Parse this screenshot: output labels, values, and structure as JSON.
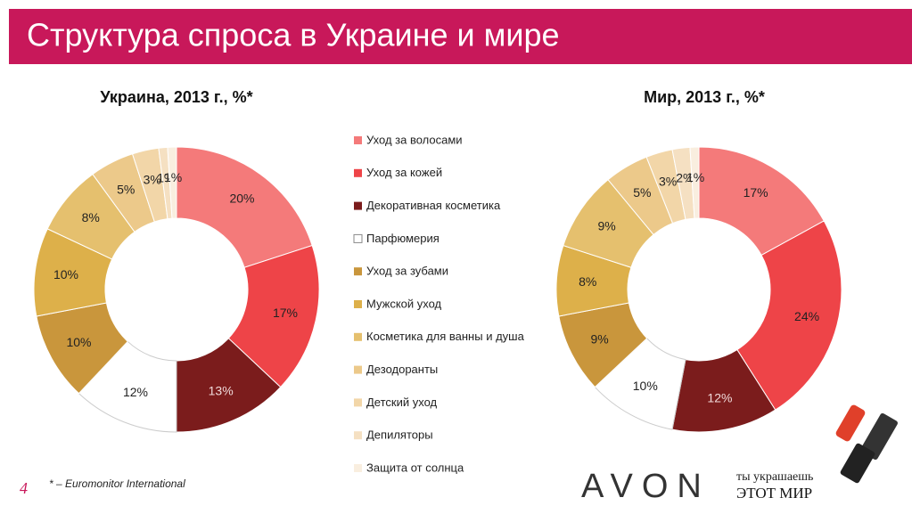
{
  "slide": {
    "title": "Структура спроса в Украине и мире",
    "page_number": "4",
    "footnote": "* – Euromonitor International",
    "brand": "AVON",
    "slogan_top": "ты украшаешь",
    "slogan_bottom": "ЭТОТ МИР"
  },
  "chart_data": [
    {
      "type": "pie",
      "title": "Украина, 2013 г., %*",
      "categories": [
        "Уход за волосами",
        "Уход за кожей",
        "Декоративная косметика",
        "Парфюмерия",
        "Уход за зубами",
        "Мужской уход",
        "Косметика для ванны и душа",
        "Дезодоранты",
        "Детский уход",
        "Депиляторы",
        "Защита от солнца"
      ],
      "values": [
        20,
        17,
        13,
        12,
        10,
        10,
        8,
        5,
        3,
        1,
        1
      ],
      "value_labels": [
        "20%",
        "17%",
        "13%",
        "12%",
        "10%",
        "10%",
        "8%",
        "5%",
        "3%",
        "1%",
        "1%"
      ],
      "colors": [
        "#f47a7a",
        "#ee4448",
        "#7b1c1c",
        "#ffffff",
        "#c9963c",
        "#ddb04a",
        "#e5c06e",
        "#ecc98a",
        "#f2d6a8",
        "#f5e0c2",
        "#f9eedf"
      ]
    },
    {
      "type": "pie",
      "title": "Мир, 2013 г., %*",
      "categories": [
        "Уход за волосами",
        "Уход за кожей",
        "Декоративная косметика",
        "Парфюмерия",
        "Уход за зубами",
        "Мужской уход",
        "Косметика для ванны и душа",
        "Дезодоранты",
        "Детский уход",
        "Депиляторы",
        "Защита от солнца"
      ],
      "values": [
        17,
        24,
        12,
        10,
        9,
        8,
        9,
        5,
        3,
        2,
        1
      ],
      "value_labels": [
        "17%",
        "24%",
        "12%",
        "10%",
        "9%",
        "8%",
        "9%",
        "5%",
        "3%",
        "2%",
        "1%"
      ],
      "colors": [
        "#f47a7a",
        "#ee4448",
        "#7b1c1c",
        "#ffffff",
        "#c9963c",
        "#ddb04a",
        "#e5c06e",
        "#ecc98a",
        "#f2d6a8",
        "#f5e0c2",
        "#f9eedf"
      ]
    }
  ]
}
